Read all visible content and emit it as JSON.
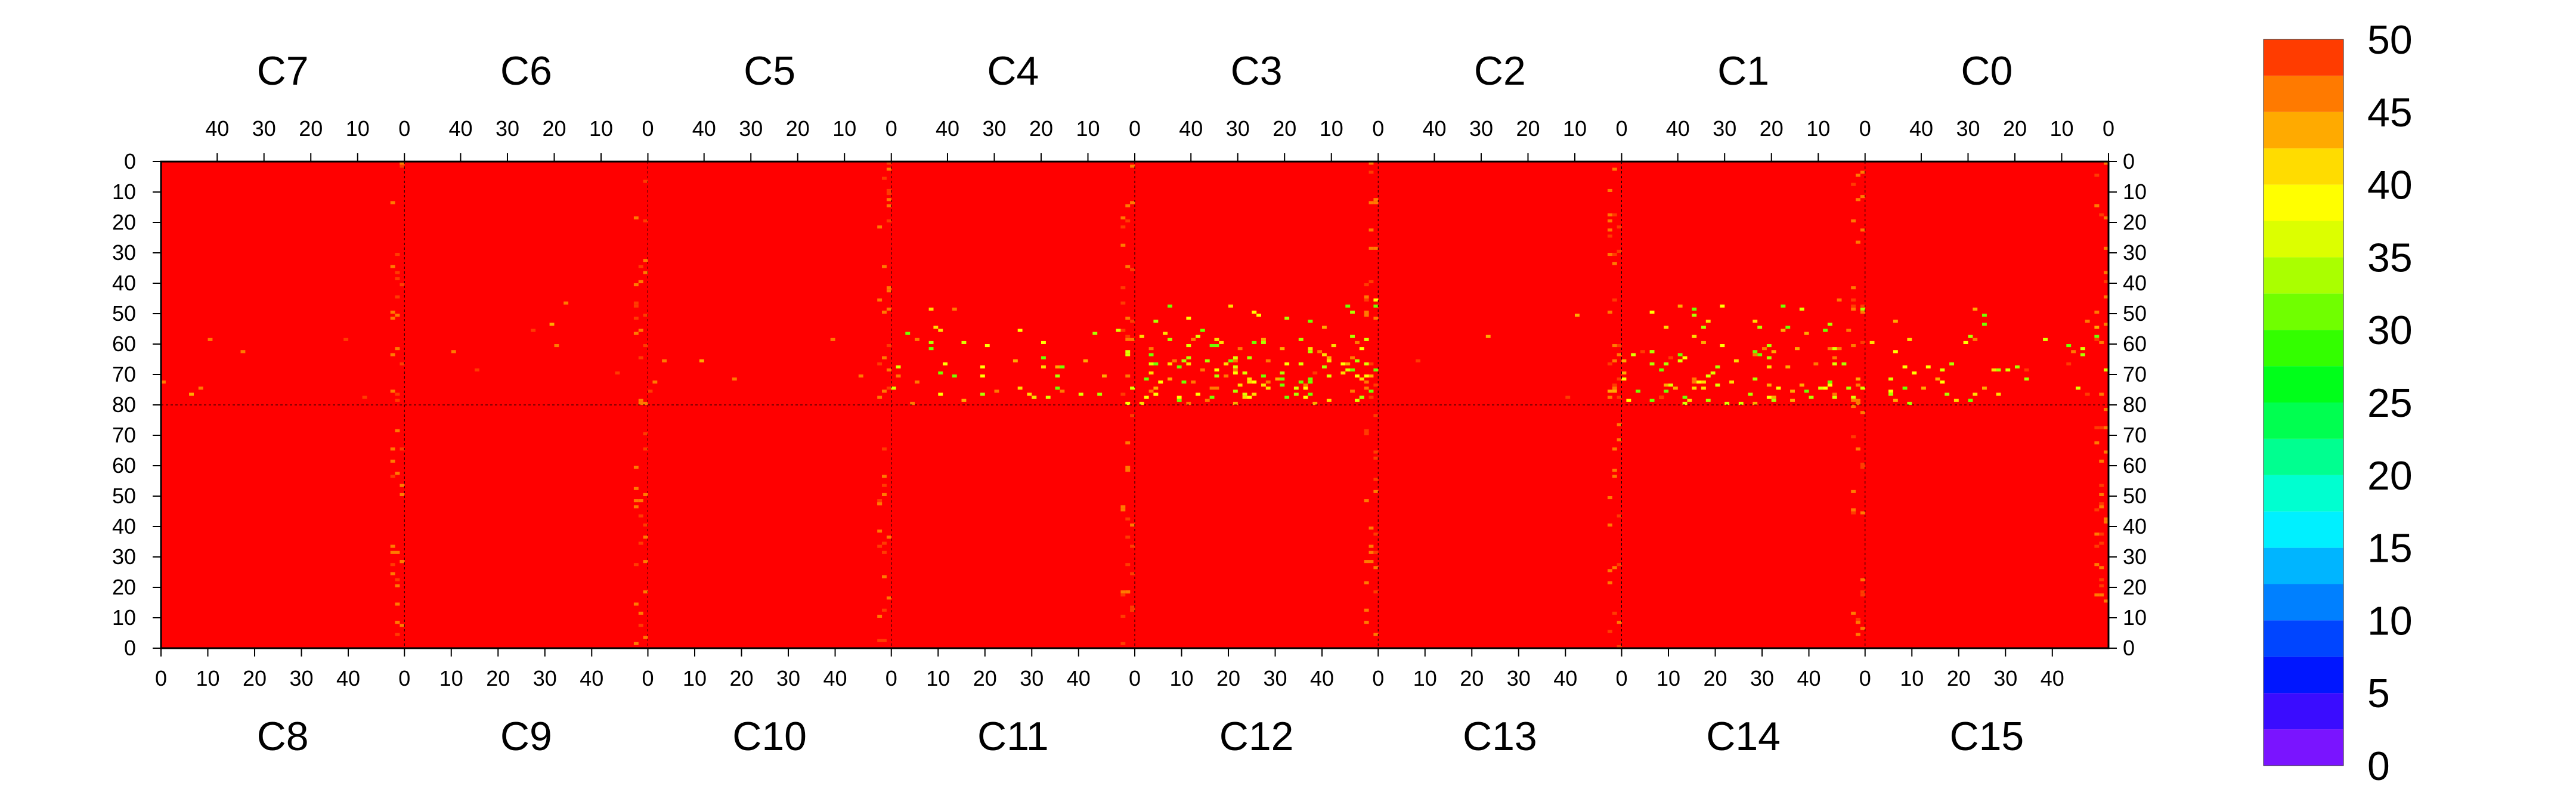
{
  "chart_data": {
    "type": "heatmap",
    "title": "",
    "xlabel": "",
    "ylabel": "",
    "top_modules": [
      "C7",
      "C6",
      "C5",
      "C4",
      "C3",
      "C2",
      "C1",
      "C0"
    ],
    "bottom_modules": [
      "C8",
      "C9",
      "C10",
      "C11",
      "C12",
      "C13",
      "C14",
      "C15"
    ],
    "top_x_ticks": [
      "40",
      "30",
      "20",
      "10",
      "0"
    ],
    "bottom_x_ticks": [
      "0",
      "10",
      "20",
      "30",
      "40"
    ],
    "top_x_range": [
      52,
      0
    ],
    "bottom_x_range": [
      0,
      52
    ],
    "y_ticks_top_half": [
      "0",
      "10",
      "20",
      "30",
      "40",
      "50",
      "60",
      "70",
      "80"
    ],
    "y_ticks_bottom_half": [
      "70",
      "60",
      "50",
      "40",
      "30",
      "20",
      "10",
      "0"
    ],
    "y_range_top_half": [
      0,
      80
    ],
    "y_range_bottom_half": [
      80,
      0
    ],
    "z_range": [
      0,
      50
    ],
    "colorbar": {
      "labels": [
        "50",
        "45",
        "40",
        "35",
        "30",
        "25",
        "20",
        "15",
        "10",
        "5",
        "0"
      ],
      "levels": [
        0,
        2.5,
        5,
        7.5,
        10,
        12.5,
        15,
        17.5,
        20,
        22.5,
        25,
        27.5,
        30,
        32.5,
        35,
        37.5,
        40,
        42.5,
        45,
        47.5,
        50
      ],
      "colors": [
        "#7a14ff",
        "#3a0cff",
        "#0016ff",
        "#0045ff",
        "#0080ff",
        "#00b5ff",
        "#00f0ff",
        "#00ffd0",
        "#00ff90",
        "#00ff50",
        "#00ff1a",
        "#33ff00",
        "#70ff00",
        "#aaff00",
        "#dcff00",
        "#ffff00",
        "#ffdc00",
        "#ffaa00",
        "#ff7a00",
        "#ff3c00",
        "#ff0000"
      ]
    },
    "background_value": 50,
    "description_values": {
      "hot_region_modules": [
        "C3",
        "C1",
        "C0",
        "C4"
      ],
      "hot_region_y_range": [
        45,
        80
      ],
      "dominant_value": 50
    }
  }
}
